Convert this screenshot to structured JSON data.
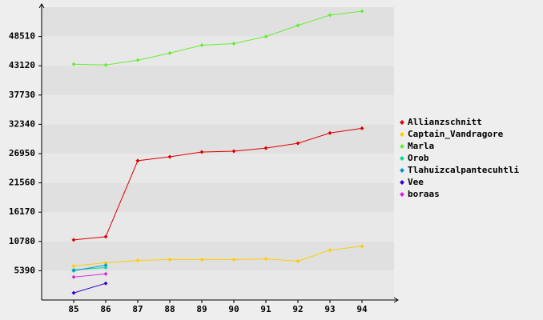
{
  "chart_data": {
    "type": "line",
    "x": [
      85,
      86,
      87,
      88,
      89,
      90,
      91,
      92,
      93,
      94
    ],
    "xlim": [
      84,
      95
    ],
    "xticks": [
      85,
      86,
      87,
      88,
      89,
      90,
      91,
      92,
      93,
      94
    ],
    "ylim": [
      0,
      53900
    ],
    "yticks": [
      5390,
      10780,
      16170,
      21560,
      26950,
      32340,
      37730,
      43120,
      48510
    ],
    "grid": true,
    "legend": "right",
    "series": [
      {
        "name": "Allianzschnitt",
        "color": "#dd0000",
        "values": [
          11071,
          11654,
          25640,
          26368,
          27242,
          27388,
          27970,
          28845,
          30739,
          31613
        ]
      },
      {
        "name": "Captain_Vandragore",
        "color": "#ffcc00",
        "values": [
          6264,
          6847,
          7284,
          7430,
          7430,
          7430,
          7575,
          7138,
          9178,
          9906
        ]
      },
      {
        "name": "Marla",
        "color": "#66ee33",
        "values": [
          43412,
          43266,
          44140,
          45451,
          46908,
          47200,
          48511,
          50550,
          52444,
          53172
        ]
      },
      {
        "name": "Orob",
        "color": "#00dd99",
        "values": [
          5536,
          5973,
          null,
          null,
          null,
          null,
          null,
          null,
          null,
          null
        ]
      },
      {
        "name": "Tlahuizcalpantecuhtli",
        "color": "#0099cc",
        "values": [
          5390,
          6410,
          null,
          null,
          null,
          null,
          null,
          null,
          null,
          null
        ]
      },
      {
        "name": "Vee",
        "color": "#3300cc",
        "values": [
          1311,
          3059,
          null,
          null,
          null,
          null,
          null,
          null,
          null,
          null
        ]
      },
      {
        "name": "boraas",
        "color": "#dd22dd",
        "values": [
          4225,
          4807,
          null,
          null,
          null,
          null,
          null,
          null,
          null,
          null
        ]
      }
    ]
  }
}
